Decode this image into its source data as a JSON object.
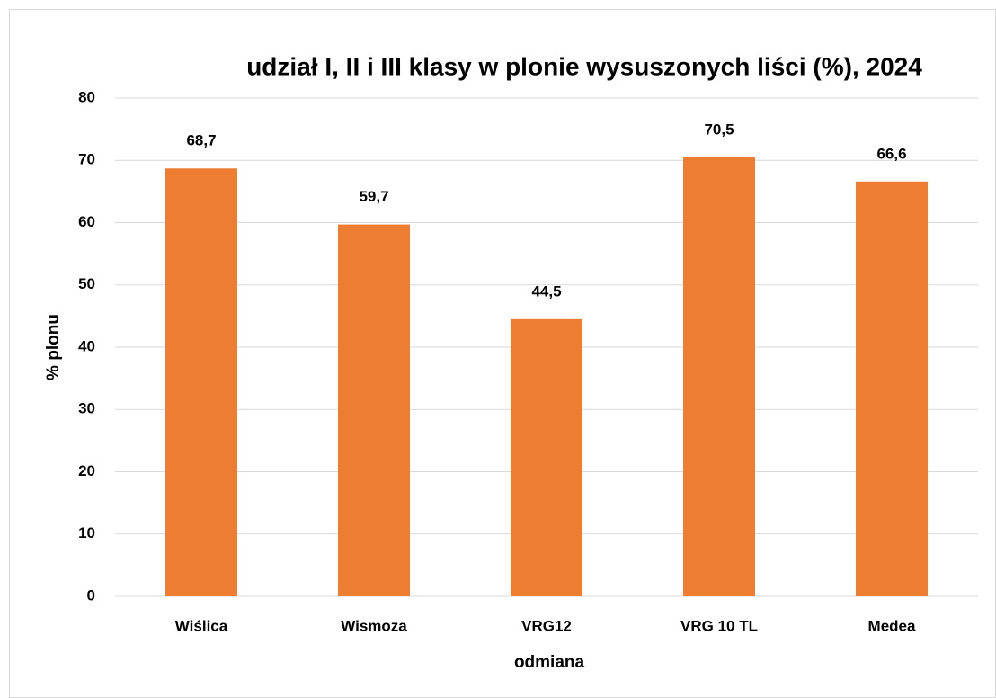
{
  "chart_data": {
    "type": "bar",
    "title": "udział I, II i III klasy w plonie wysuszonych liści (%), 2024",
    "x_label": "odmiana",
    "y_label": "% plonu",
    "categories": [
      "Wiślica",
      "Wismoza",
      "VRG12",
      "VRG 10 TL",
      "Medea"
    ],
    "values": [
      68.7,
      59.7,
      44.5,
      70.5,
      66.6
    ],
    "value_labels": [
      "68,7",
      "59,7",
      "44,5",
      "70,5",
      "66,6"
    ],
    "color": "#ed7d31",
    "ylim": [
      0,
      80
    ],
    "yticks": [
      0,
      10,
      20,
      30,
      40,
      50,
      60,
      70,
      80
    ],
    "grid": true
  }
}
